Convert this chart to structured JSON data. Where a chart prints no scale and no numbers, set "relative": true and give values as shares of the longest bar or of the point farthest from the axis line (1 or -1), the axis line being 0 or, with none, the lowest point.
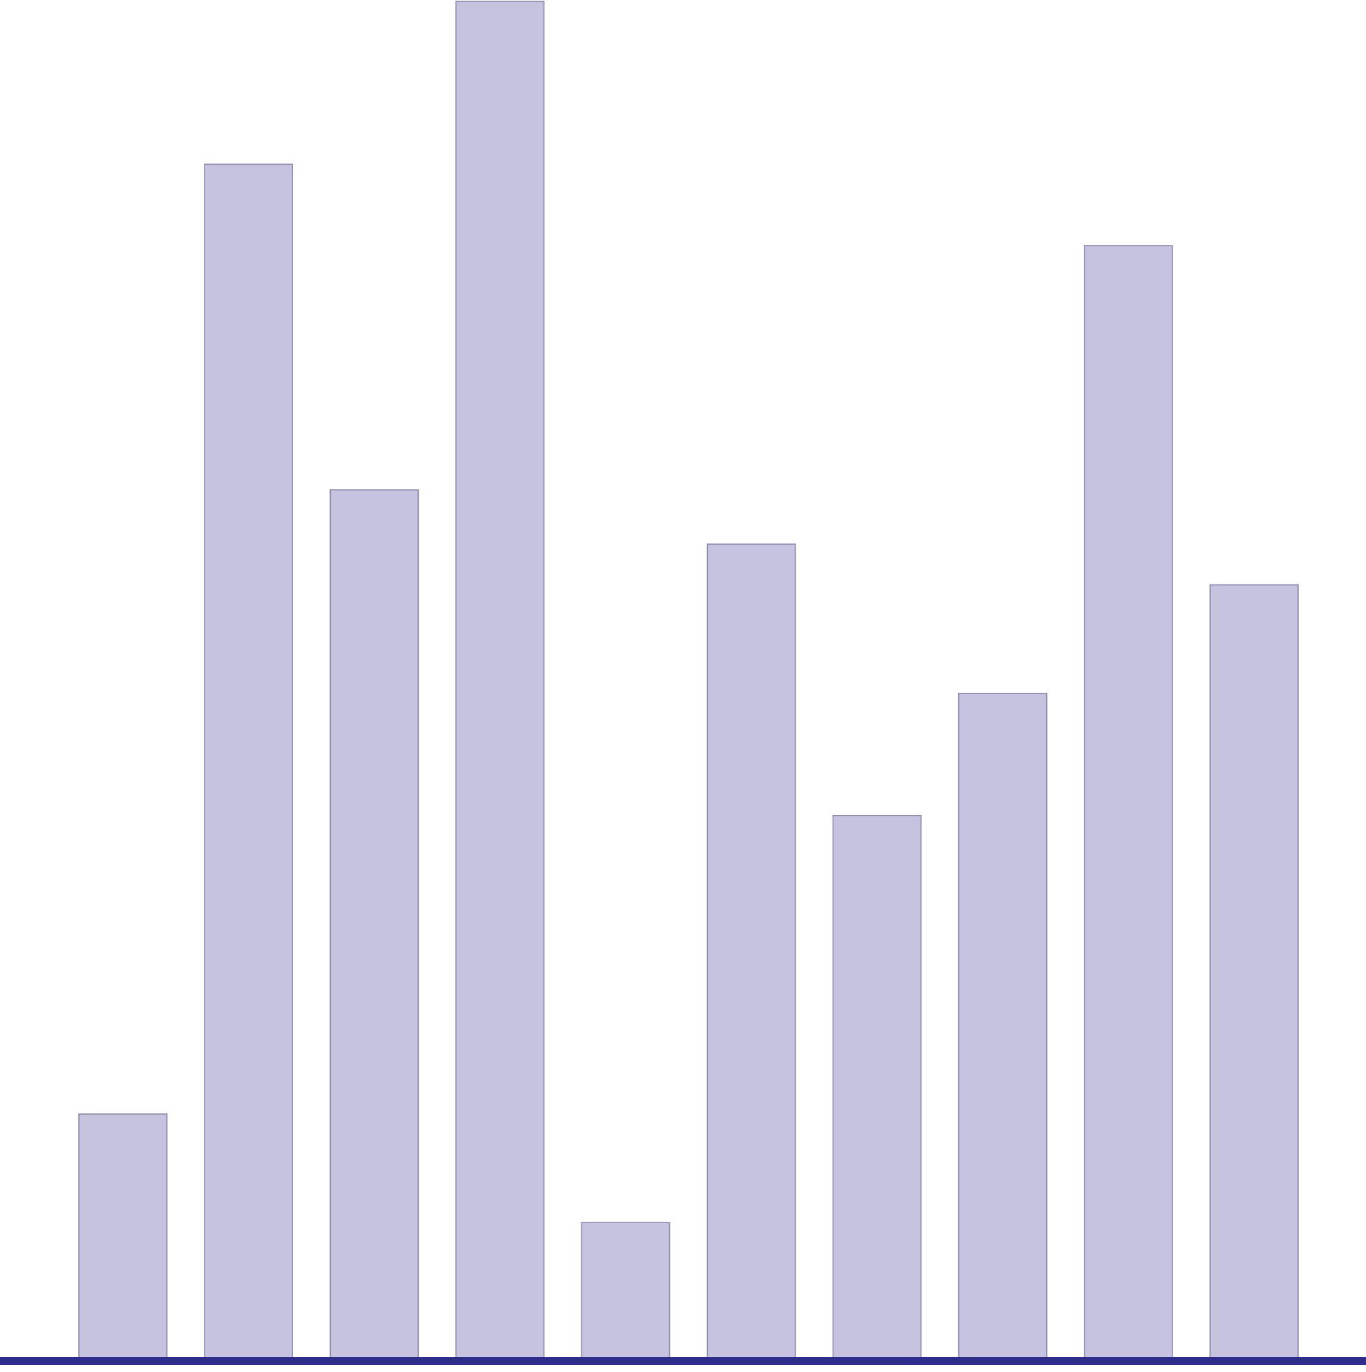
{
  "chart_data": {
    "type": "bar",
    "relative": true,
    "categories": [
      null,
      null,
      null,
      null,
      null,
      null,
      null,
      null,
      null,
      null
    ],
    "values": [
      0.18,
      0.88,
      0.64,
      1,
      0.1,
      0.6,
      0.4,
      0.49,
      0.82,
      0.57
    ],
    "color": "#c5c3e0"
  }
}
